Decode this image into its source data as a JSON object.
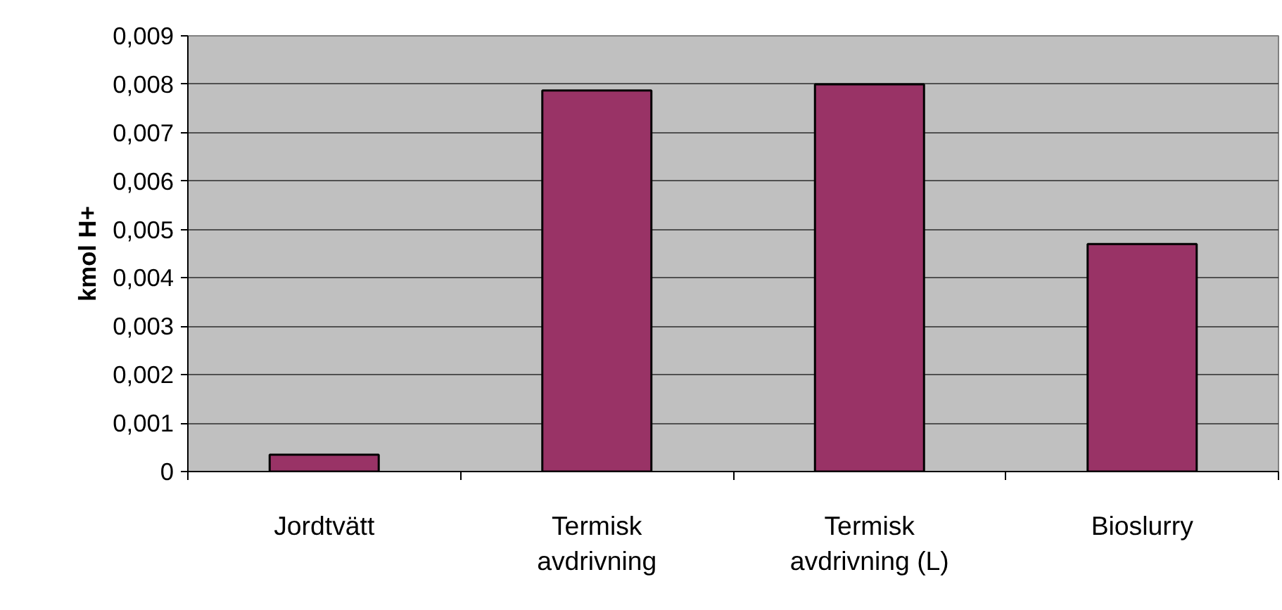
{
  "chart_data": {
    "type": "bar",
    "ylabel": "kmol H+",
    "categories": [
      "Jordtvätt",
      "Termisk avdrivning",
      "Termisk avdrivning (L)",
      "Bioslurry"
    ],
    "values": [
      0.00035,
      0.00787,
      0.008,
      0.0047
    ],
    "color": "#993366",
    "ylim": [
      0,
      0.009
    ],
    "yticks": [
      0,
      {
        "value": 0.001,
        "label": "0,001"
      },
      {
        "value": 0.002,
        "label": "0,002"
      },
      {
        "value": 0.003,
        "label": "0,003"
      },
      {
        "value": 0.004,
        "label": "0,004"
      },
      {
        "value": 0.005,
        "label": "0,005"
      },
      {
        "value": 0.006,
        "label": "0,006"
      },
      {
        "value": 0.007,
        "label": "0,007"
      },
      {
        "value": 0.008,
        "label": "0,008"
      },
      {
        "value": 0.009,
        "label": "0,009"
      }
    ],
    "grid": "y"
  }
}
